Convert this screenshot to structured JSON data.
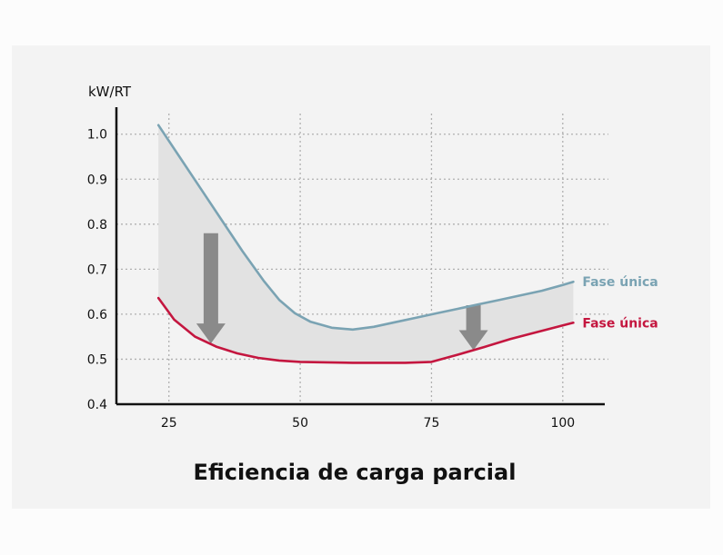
{
  "chart_data": {
    "type": "line",
    "title": "Eficiencia de carga parcial",
    "ylabel": "kW/RT",
    "xlabel": "",
    "x_ticks": [
      25,
      50,
      75,
      100
    ],
    "y_ticks": [
      0.4,
      0.5,
      0.6,
      0.7,
      0.8,
      0.9,
      1.0
    ],
    "y_tick_labels": [
      "0.4",
      "0.5",
      "0.6",
      "0.7",
      "0.8",
      "0.9",
      "1.0"
    ],
    "xlim": [
      15,
      108
    ],
    "ylim": [
      0.4,
      1.06
    ],
    "grid": true,
    "series": [
      {
        "name": "Fase única",
        "color": "#7aa3b3",
        "x": [
          23,
          27,
          31,
          35,
          39,
          43,
          46,
          49,
          52,
          56,
          60,
          64,
          68,
          72,
          76,
          80,
          84,
          88,
          92,
          96,
          100,
          102
        ],
        "y": [
          1.02,
          0.95,
          0.88,
          0.81,
          0.74,
          0.675,
          0.632,
          0.602,
          0.583,
          0.57,
          0.566,
          0.572,
          0.582,
          0.592,
          0.602,
          0.612,
          0.622,
          0.632,
          0.642,
          0.652,
          0.665,
          0.672
        ]
      },
      {
        "name": "Fase única",
        "color": "#c4163f",
        "x": [
          23,
          26,
          30,
          34,
          38,
          42,
          46,
          50,
          55,
          60,
          65,
          70,
          75,
          80,
          85,
          90,
          95,
          100,
          102
        ],
        "y": [
          0.636,
          0.588,
          0.55,
          0.528,
          0.513,
          0.503,
          0.497,
          0.494,
          0.493,
          0.492,
          0.492,
          0.492,
          0.494,
          0.51,
          0.527,
          0.545,
          0.56,
          0.575,
          0.581
        ]
      }
    ],
    "shaded_band": {
      "between_series": [
        0,
        1
      ],
      "color": "#e2e2e2"
    },
    "arrows": [
      {
        "x": 33,
        "y_from": 0.78,
        "y_to": 0.535,
        "color": "#8a8a8a"
      },
      {
        "x": 83,
        "y_from": 0.62,
        "y_to": 0.52,
        "color": "#8a8a8a"
      }
    ],
    "legend_placement": "right, next to line ends"
  }
}
